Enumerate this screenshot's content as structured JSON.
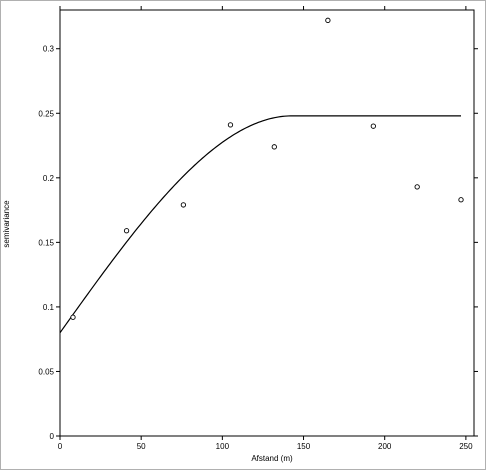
{
  "chart_data": {
    "type": "scatter",
    "title": "",
    "xlabel": "Afstand (m)",
    "ylabel": "semivariance",
    "xlim": [
      0,
      255
    ],
    "ylim": [
      0,
      0.33
    ],
    "x_ticks": [
      0,
      50,
      100,
      150,
      200,
      250
    ],
    "y_ticks": [
      0,
      0.05,
      0.1,
      0.15,
      0.2,
      0.25,
      0.3
    ],
    "x_tick_labels": [
      "0",
      "50",
      "100",
      "150",
      "200",
      "250"
    ],
    "y_tick_labels": [
      "0",
      "0.05",
      "0.1",
      "0.15",
      "0.2",
      "0.25",
      "0.3"
    ],
    "grid": false,
    "legend": "none",
    "series": [
      {
        "kind": "points",
        "marker": "open-circle",
        "x": [
          8,
          41,
          76,
          105,
          132,
          165,
          193,
          220,
          247
        ],
        "y": [
          0.092,
          0.159,
          0.179,
          0.241,
          0.224,
          0.322,
          0.24,
          0.193,
          0.183
        ]
      },
      {
        "kind": "fitted-curve",
        "model": "spherical",
        "nugget": 0.08,
        "sill": 0.248,
        "range": 143,
        "x_max": 247
      }
    ],
    "colors": {
      "line": "#000000",
      "marker": "#000000",
      "background": "#ffffff",
      "frame": "#b0b0b0"
    }
  }
}
